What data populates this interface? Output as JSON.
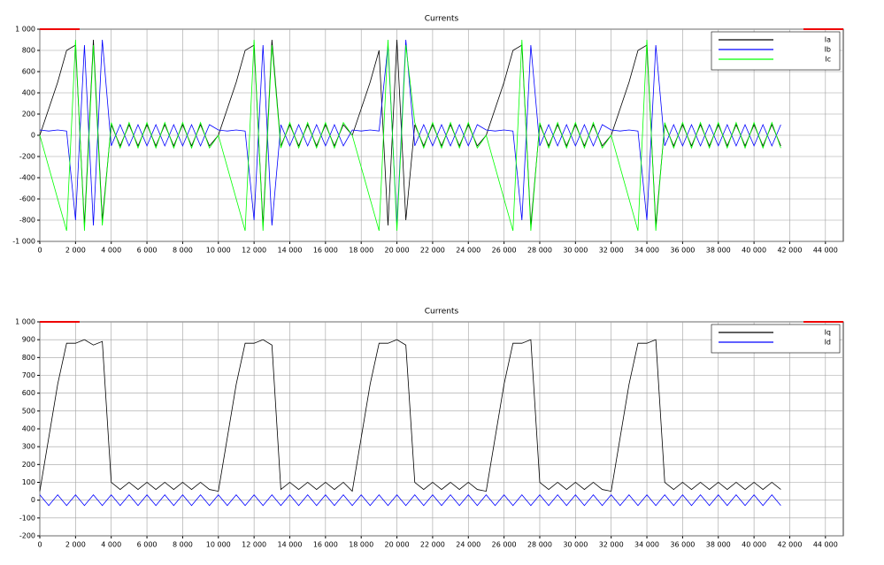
{
  "chart_data": [
    {
      "type": "line",
      "title": "Currents",
      "x": [
        0,
        500,
        1000,
        1500,
        2000,
        2500,
        3000,
        3500,
        4000,
        4500,
        5000,
        5500,
        6000,
        6500,
        7000,
        7500,
        8000,
        8500,
        9000,
        9500,
        10000,
        10500,
        11000,
        11500,
        12000,
        12500,
        13000,
        13500,
        14000,
        14500,
        15000,
        15500,
        16000,
        16500,
        17000,
        17500,
        18000,
        18500,
        19000,
        19500,
        20000,
        20500,
        21000,
        21500,
        22000,
        22500,
        23000,
        23500,
        24000,
        24500,
        25000,
        25500,
        26000,
        26500,
        27000,
        27500,
        28000,
        28500,
        29000,
        29500,
        30000,
        30500,
        31000,
        31500,
        32000,
        32500,
        33000,
        33500,
        34000,
        34500,
        35000,
        35500,
        36000,
        36500,
        37000,
        37500,
        38000,
        38500,
        39000,
        39500,
        40000,
        40500,
        41000,
        41500
      ],
      "series": [
        {
          "name": "Ia",
          "color": "#000000",
          "values": [
            0,
            250,
            500,
            800,
            850,
            -850,
            900,
            -800,
            100,
            -100,
            100,
            -100,
            100,
            -100,
            100,
            -100,
            100,
            -100,
            100,
            -100,
            0,
            250,
            500,
            800,
            850,
            -850,
            900,
            -100,
            100,
            -100,
            100,
            -100,
            100,
            -100,
            100,
            0,
            250,
            500,
            800,
            -850,
            900,
            -800,
            100,
            -100,
            100,
            -100,
            100,
            -100,
            100,
            -100,
            0,
            250,
            500,
            800,
            850,
            -850,
            100,
            -100,
            100,
            -100,
            100,
            -100,
            100,
            -100,
            0,
            250,
            500,
            800,
            850,
            -850,
            100,
            -100,
            100,
            -100,
            100,
            -100,
            100,
            -100,
            100,
            -100,
            100,
            -100,
            100,
            -100
          ]
        },
        {
          "name": "Ib",
          "color": "#0000ff",
          "values": [
            50,
            40,
            50,
            40,
            -800,
            850,
            -850,
            900,
            -100,
            100,
            -100,
            100,
            -100,
            100,
            -100,
            100,
            -100,
            100,
            -100,
            100,
            50,
            40,
            50,
            40,
            -800,
            850,
            -850,
            100,
            -100,
            100,
            -100,
            100,
            -100,
            100,
            -100,
            50,
            40,
            50,
            40,
            850,
            -850,
            900,
            -100,
            100,
            -100,
            100,
            -100,
            100,
            -100,
            100,
            50,
            40,
            50,
            40,
            -800,
            850,
            -100,
            100,
            -100,
            100,
            -100,
            100,
            -100,
            100,
            50,
            40,
            50,
            40,
            -800,
            850,
            -100,
            100,
            -100,
            100,
            -100,
            100,
            -100,
            100,
            -100,
            100,
            -100,
            100,
            -100,
            100
          ]
        },
        {
          "name": "Ic",
          "color": "#00ff00",
          "values": [
            0,
            -300,
            -600,
            -900,
            900,
            -900,
            850,
            -850,
            120,
            -120,
            120,
            -120,
            120,
            -120,
            120,
            -120,
            120,
            -120,
            120,
            -120,
            0,
            -300,
            -600,
            -900,
            900,
            -900,
            850,
            -120,
            120,
            -120,
            120,
            -120,
            120,
            -120,
            120,
            0,
            -300,
            -600,
            -900,
            900,
            -900,
            850,
            120,
            -120,
            120,
            -120,
            120,
            -120,
            120,
            -120,
            0,
            -300,
            -600,
            -900,
            900,
            -900,
            120,
            -120,
            120,
            -120,
            120,
            -120,
            120,
            -120,
            0,
            -300,
            -600,
            -900,
            900,
            -900,
            120,
            -120,
            120,
            -120,
            120,
            -120,
            120,
            -120,
            120,
            -120,
            120,
            -120,
            120,
            -120
          ]
        }
      ],
      "xlim": [
        0,
        45000
      ],
      "xticks": [
        0,
        {
          "value": 2000,
          "label": "2 000"
        },
        {
          "value": 4000,
          "label": "4 000"
        },
        {
          "value": 6000,
          "label": "6 000"
        },
        {
          "value": 8000,
          "label": "8 000"
        },
        {
          "value": 10000,
          "label": "10 000"
        },
        {
          "value": 12000,
          "label": "12 000"
        },
        {
          "value": 14000,
          "label": "14 000"
        },
        {
          "value": 16000,
          "label": "16 000"
        },
        {
          "value": 18000,
          "label": "18 000"
        },
        {
          "value": 20000,
          "label": "20 000"
        },
        {
          "value": 22000,
          "label": "22 000"
        },
        {
          "value": 24000,
          "label": "24 000"
        },
        {
          "value": 26000,
          "label": "26 000"
        },
        {
          "value": 28000,
          "label": "28 000"
        },
        {
          "value": 30000,
          "label": "30 000"
        },
        {
          "value": 32000,
          "label": "32 000"
        },
        {
          "value": 34000,
          "label": "34 000"
        },
        {
          "value": 36000,
          "label": "36 000"
        },
        {
          "value": 38000,
          "label": "38 000"
        },
        {
          "value": 40000,
          "label": "40 000"
        },
        {
          "value": 42000,
          "label": "42 000"
        },
        {
          "value": 44000,
          "label": "44 000"
        }
      ],
      "ylim": [
        -1000,
        1000
      ],
      "yticks": [
        {
          "value": -1000,
          "label": "-1 000"
        },
        -800,
        -600,
        -400,
        -200,
        0,
        200,
        400,
        600,
        800,
        {
          "value": 1000,
          "label": "1 000"
        }
      ],
      "grid": true,
      "legend": "upper right"
    },
    {
      "type": "line",
      "title": "Currents",
      "x": [
        0,
        500,
        1000,
        1500,
        2000,
        2500,
        3000,
        3500,
        4000,
        4500,
        5000,
        5500,
        6000,
        6500,
        7000,
        7500,
        8000,
        8500,
        9000,
        9500,
        10000,
        10500,
        11000,
        11500,
        12000,
        12500,
        13000,
        13500,
        14000,
        14500,
        15000,
        15500,
        16000,
        16500,
        17000,
        17500,
        18000,
        18500,
        19000,
        19500,
        20000,
        20500,
        21000,
        21500,
        22000,
        22500,
        23000,
        23500,
        24000,
        24500,
        25000,
        25500,
        26000,
        26500,
        27000,
        27500,
        28000,
        28500,
        29000,
        29500,
        30000,
        30500,
        31000,
        31500,
        32000,
        32500,
        33000,
        33500,
        34000,
        34500,
        35000,
        35500,
        36000,
        36500,
        37000,
        37500,
        38000,
        38500,
        39000,
        39500,
        40000,
        40500,
        41000,
        41500
      ],
      "series": [
        {
          "name": "Iq",
          "color": "#000000",
          "values": [
            50,
            350,
            650,
            880,
            880,
            900,
            870,
            890,
            100,
            60,
            100,
            60,
            100,
            60,
            100,
            60,
            100,
            60,
            100,
            60,
            50,
            350,
            650,
            880,
            880,
            900,
            870,
            60,
            100,
            60,
            100,
            60,
            100,
            60,
            100,
            50,
            350,
            650,
            880,
            880,
            900,
            870,
            100,
            60,
            100,
            60,
            100,
            60,
            100,
            60,
            50,
            350,
            650,
            880,
            880,
            900,
            100,
            60,
            100,
            60,
            100,
            60,
            100,
            60,
            50,
            350,
            650,
            880,
            880,
            900,
            100,
            60,
            100,
            60,
            100,
            60,
            100,
            60,
            100,
            60,
            100,
            60,
            100,
            60
          ]
        },
        {
          "name": "Id",
          "color": "#0000ff",
          "values": [
            30,
            -30,
            30,
            -30,
            30,
            -30,
            30,
            -30,
            30,
            -30,
            30,
            -30,
            30,
            -30,
            30,
            -30,
            30,
            -30,
            30,
            -30,
            30,
            -30,
            30,
            -30,
            30,
            -30,
            30,
            -30,
            30,
            -30,
            30,
            -30,
            30,
            -30,
            30,
            -30,
            30,
            -30,
            30,
            -30,
            30,
            -30,
            30,
            -30,
            30,
            -30,
            30,
            -30,
            30,
            -30,
            30,
            -30,
            30,
            -30,
            30,
            -30,
            30,
            -30,
            30,
            -30,
            30,
            -30,
            30,
            -30,
            30,
            -30,
            30,
            -30,
            30,
            -30,
            30,
            -30,
            30,
            -30,
            30,
            -30,
            30,
            -30,
            30,
            -30,
            30,
            -30,
            30,
            -30
          ]
        }
      ],
      "xlim": [
        0,
        45000
      ],
      "xticks": [
        0,
        {
          "value": 2000,
          "label": "2 000"
        },
        {
          "value": 4000,
          "label": "4 000"
        },
        {
          "value": 6000,
          "label": "6 000"
        },
        {
          "value": 8000,
          "label": "8 000"
        },
        {
          "value": 10000,
          "label": "10 000"
        },
        {
          "value": 12000,
          "label": "12 000"
        },
        {
          "value": 14000,
          "label": "14 000"
        },
        {
          "value": 16000,
          "label": "16 000"
        },
        {
          "value": 18000,
          "label": "18 000"
        },
        {
          "value": 20000,
          "label": "20 000"
        },
        {
          "value": 22000,
          "label": "22 000"
        },
        {
          "value": 24000,
          "label": "24 000"
        },
        {
          "value": 26000,
          "label": "26 000"
        },
        {
          "value": 28000,
          "label": "28 000"
        },
        {
          "value": 30000,
          "label": "30 000"
        },
        {
          "value": 32000,
          "label": "32 000"
        },
        {
          "value": 34000,
          "label": "34 000"
        },
        {
          "value": 36000,
          "label": "36 000"
        },
        {
          "value": 38000,
          "label": "38 000"
        },
        {
          "value": 40000,
          "label": "40 000"
        },
        {
          "value": 42000,
          "label": "42 000"
        },
        {
          "value": 44000,
          "label": "44 000"
        }
      ],
      "ylim": [
        -200,
        1000
      ],
      "yticks": [
        -200,
        -100,
        0,
        100,
        200,
        300,
        400,
        500,
        600,
        700,
        800,
        900,
        {
          "value": 1000,
          "label": "1 000"
        }
      ],
      "grid": true,
      "legend": "upper right"
    }
  ]
}
